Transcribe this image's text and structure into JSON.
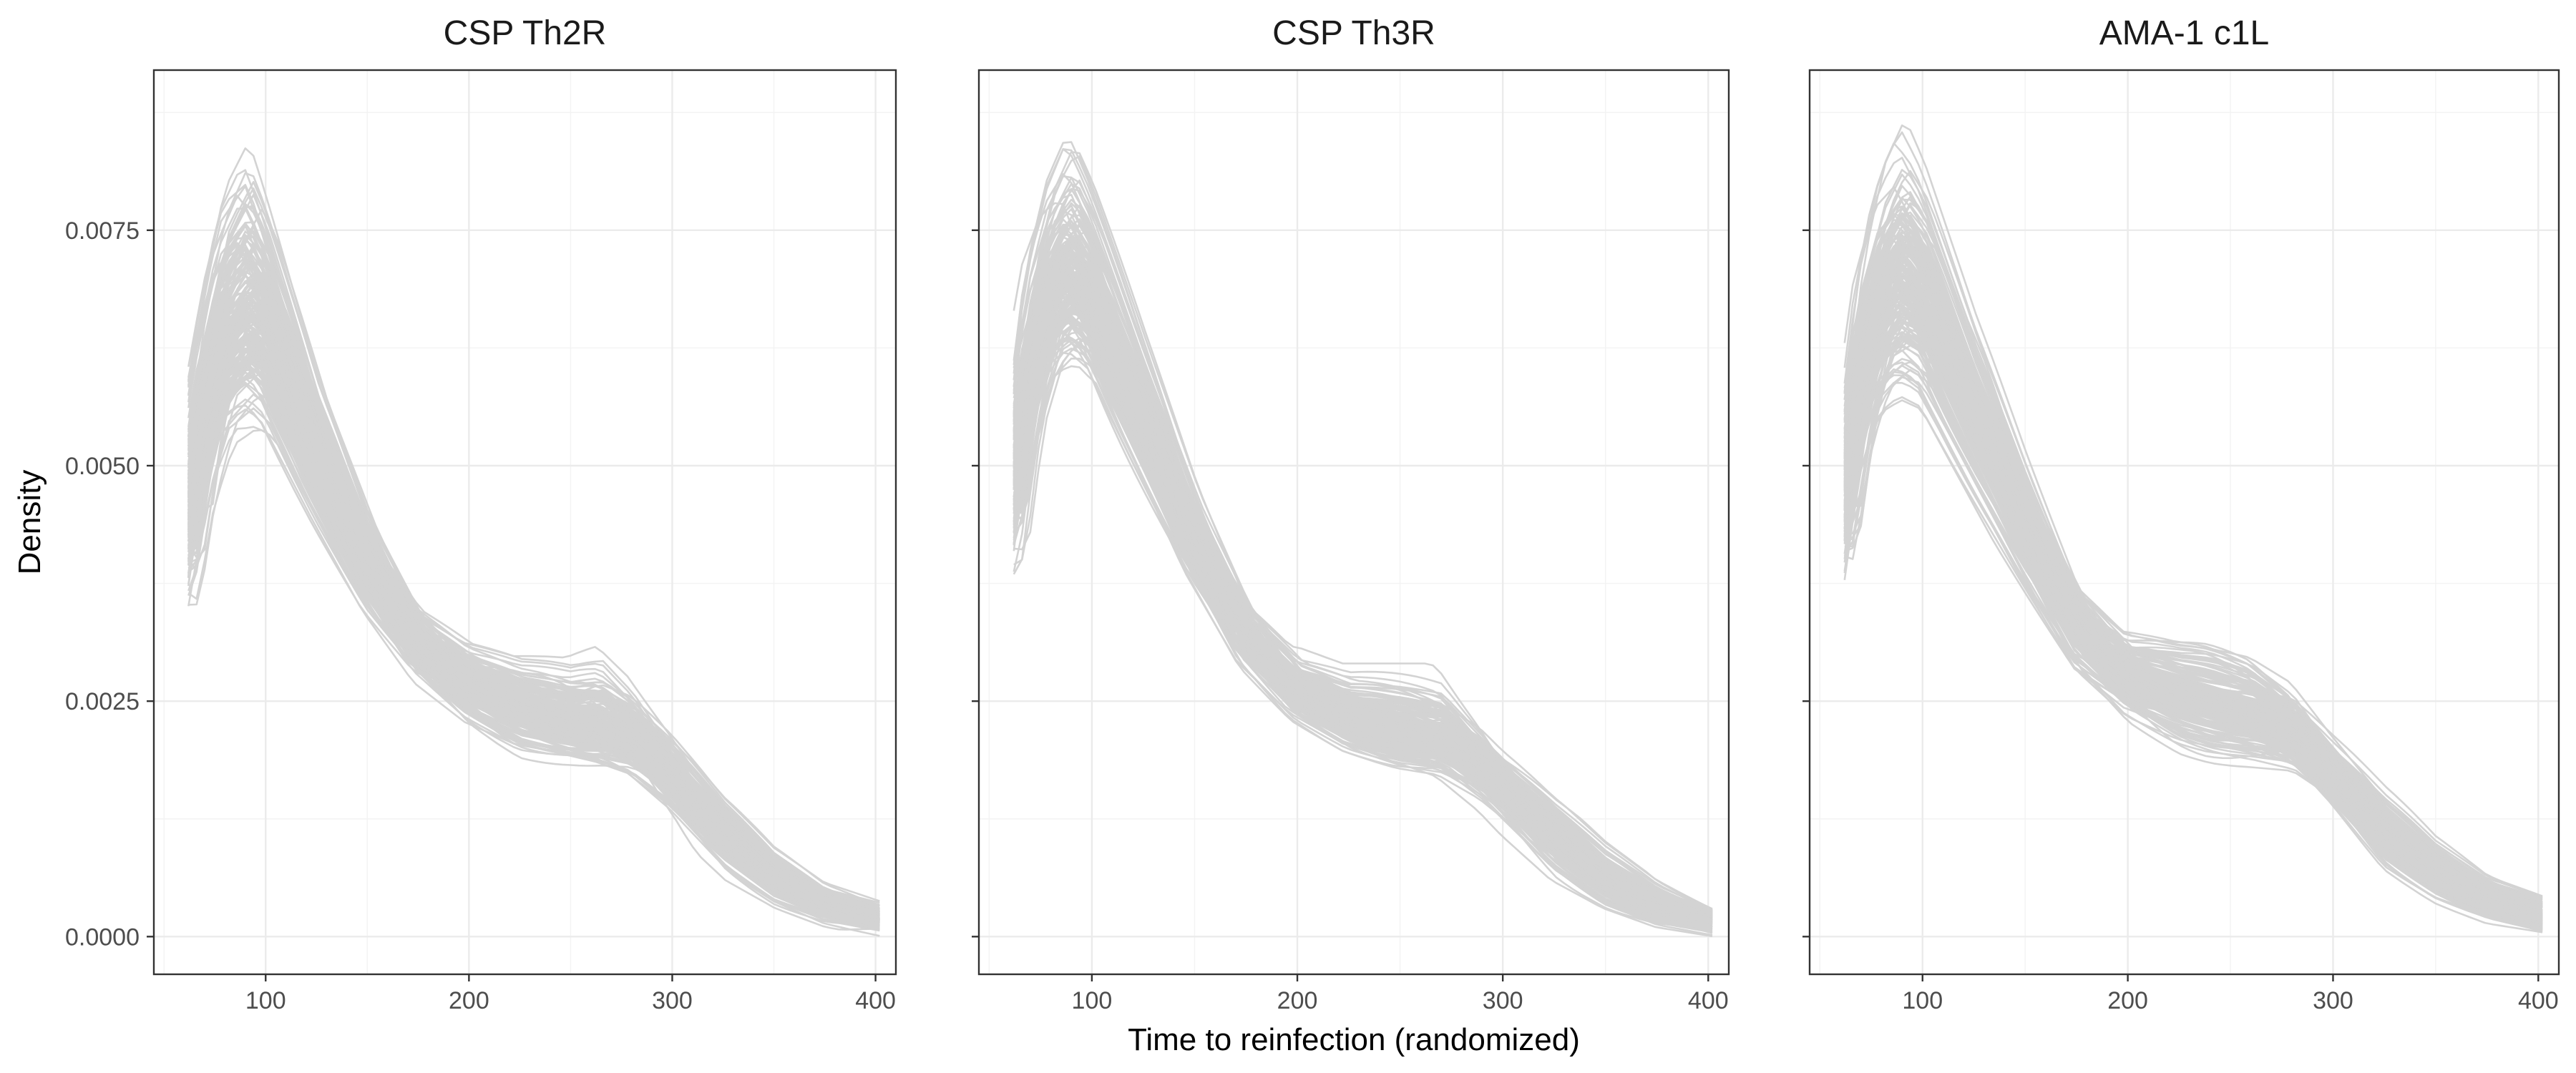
{
  "chart_data": [
    {
      "type": "line",
      "title": "CSP Th2R",
      "xlabel": "Time to reinfection (randomized)",
      "ylabel": "Density",
      "xlim": [
        45,
        410
      ],
      "ylim": [
        -0.0004,
        0.0092
      ],
      "x_ticks": [
        100,
        200,
        300,
        400
      ],
      "y_ticks": [
        0.0,
        0.0025,
        0.005,
        0.0075
      ],
      "y_tick_labels": [
        "0.0000",
        "0.0025",
        "0.0050",
        "0.0075"
      ],
      "grid": true,
      "series_count": 200,
      "series_color": "#d3d3d3",
      "series_summary": {
        "x": [
          62,
          70,
          80,
          92,
          100,
          125,
          150,
          175,
          200,
          225,
          250,
          265,
          280,
          300,
          325,
          350,
          375,
          403
        ],
        "mean": [
          0.0044,
          0.0055,
          0.0063,
          0.0066,
          0.0064,
          0.005,
          0.0039,
          0.0031,
          0.0027,
          0.00245,
          0.0023,
          0.00225,
          0.0021,
          0.0017,
          0.0011,
          0.0006,
          0.00035,
          0.00018
        ],
        "low": [
          0.0032,
          0.0043,
          0.0051,
          0.0054,
          0.0053,
          0.0043,
          0.0033,
          0.0025,
          0.002,
          0.0017,
          0.0016,
          0.0015,
          0.0014,
          0.0011,
          0.0006,
          0.0003,
          0.0001,
          0.0
        ],
        "high": [
          0.006,
          0.0071,
          0.0082,
          0.0087,
          0.0081,
          0.0062,
          0.0048,
          0.0038,
          0.0033,
          0.0031,
          0.0031,
          0.0033,
          0.003,
          0.0024,
          0.0016,
          0.001,
          0.0006,
          0.0004
        ]
      }
    },
    {
      "type": "line",
      "title": "CSP Th3R",
      "xlabel": "Time to reinfection (randomized)",
      "ylabel": "Density",
      "xlim": [
        45,
        410
      ],
      "ylim": [
        -0.0004,
        0.0092
      ],
      "x_ticks": [
        100,
        200,
        300,
        400
      ],
      "grid": true,
      "series_count": 200,
      "series_color": "#d3d3d3",
      "series_summary": {
        "x": [
          62,
          70,
          80,
          90,
          100,
          125,
          150,
          175,
          200,
          225,
          250,
          270,
          290,
          300,
          325,
          350,
          375,
          403
        ],
        "mean": [
          0.0048,
          0.006,
          0.0068,
          0.0071,
          0.0068,
          0.0055,
          0.0042,
          0.0032,
          0.0026,
          0.0023,
          0.0022,
          0.0021,
          0.0018,
          0.0016,
          0.0011,
          0.0006,
          0.00035,
          0.0002
        ],
        "low": [
          0.0036,
          0.005,
          0.0057,
          0.0059,
          0.0058,
          0.0047,
          0.0036,
          0.0027,
          0.0022,
          0.0019,
          0.0017,
          0.0016,
          0.0013,
          0.0011,
          0.0006,
          0.0003,
          0.0001,
          0.0
        ],
        "high": [
          0.006,
          0.0075,
          0.0083,
          0.0087,
          0.0081,
          0.0065,
          0.005,
          0.0038,
          0.0031,
          0.0029,
          0.0029,
          0.0029,
          0.0024,
          0.0021,
          0.0015,
          0.001,
          0.0006,
          0.0003
        ]
      }
    },
    {
      "type": "line",
      "title": "AMA-1 c1L",
      "xlabel": "Time to reinfection (randomized)",
      "ylabel": "Density",
      "xlim": [
        45,
        410
      ],
      "ylim": [
        -0.0004,
        0.0092
      ],
      "x_ticks": [
        100,
        200,
        300,
        400
      ],
      "grid": true,
      "series_count": 200,
      "series_color": "#d3d3d3",
      "series_summary": {
        "x": [
          62,
          70,
          80,
          90,
          100,
          125,
          150,
          175,
          200,
          225,
          240,
          260,
          280,
          300,
          325,
          350,
          375,
          403
        ],
        "mean": [
          0.0046,
          0.0058,
          0.0067,
          0.007,
          0.0068,
          0.0055,
          0.0043,
          0.0033,
          0.0028,
          0.0026,
          0.0025,
          0.0024,
          0.0022,
          0.0017,
          0.0011,
          0.0007,
          0.0004,
          0.0002
        ],
        "low": [
          0.0036,
          0.0048,
          0.0055,
          0.0057,
          0.0056,
          0.0046,
          0.0036,
          0.0026,
          0.0021,
          0.0018,
          0.0017,
          0.0016,
          0.0015,
          0.0012,
          0.0006,
          0.0003,
          0.0001,
          0.0
        ],
        "high": [
          0.006,
          0.0074,
          0.0083,
          0.0087,
          0.0082,
          0.0066,
          0.0053,
          0.0041,
          0.0035,
          0.0034,
          0.0034,
          0.0033,
          0.003,
          0.0024,
          0.0017,
          0.0011,
          0.0007,
          0.0005
        ]
      }
    }
  ]
}
